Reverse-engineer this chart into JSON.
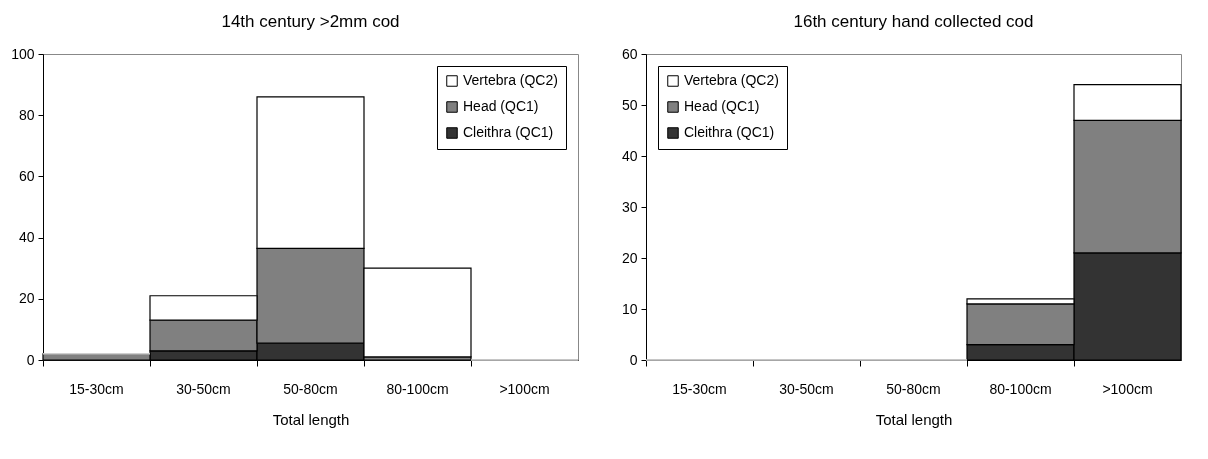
{
  "chart_data": [
    {
      "type": "bar",
      "title": "14th century >2mm cod",
      "xlabel": "Total length",
      "categories": [
        "15-30cm",
        "30-50cm",
        "50-80cm",
        "80-100cm",
        ">100cm"
      ],
      "stacked": true,
      "ylim": [
        0,
        100
      ],
      "yticks": [
        0,
        20,
        40,
        60,
        80,
        100
      ],
      "legend": "top right",
      "series": [
        {
          "name": "Cleithra (QC1)",
          "color": "#333333",
          "values": [
            0,
            3,
            5.5,
            0,
            0
          ]
        },
        {
          "name": "Head (QC1)",
          "color": "#808080",
          "values": [
            2,
            10,
            31,
            1,
            0
          ]
        },
        {
          "name": "Vertebra (QC2)",
          "color": "#ffffff",
          "values": [
            0,
            8,
            49.5,
            29,
            0
          ]
        }
      ]
    },
    {
      "type": "bar",
      "title": "16th century hand collected cod",
      "xlabel": "Total length",
      "categories": [
        "15-30cm",
        "30-50cm",
        "50-80cm",
        "80-100cm",
        ">100cm"
      ],
      "stacked": true,
      "ylim": [
        0,
        60
      ],
      "yticks": [
        0,
        10,
        20,
        30,
        40,
        50,
        60
      ],
      "legend": "top left",
      "series": [
        {
          "name": "Cleithra (QC1)",
          "color": "#333333",
          "values": [
            0,
            0,
            0,
            3,
            21
          ]
        },
        {
          "name": "Head (QC1)",
          "color": "#808080",
          "values": [
            0,
            0,
            0,
            8,
            26
          ]
        },
        {
          "name": "Vertebra (QC2)",
          "color": "#ffffff",
          "values": [
            0,
            0,
            0,
            1,
            7
          ]
        }
      ]
    }
  ]
}
